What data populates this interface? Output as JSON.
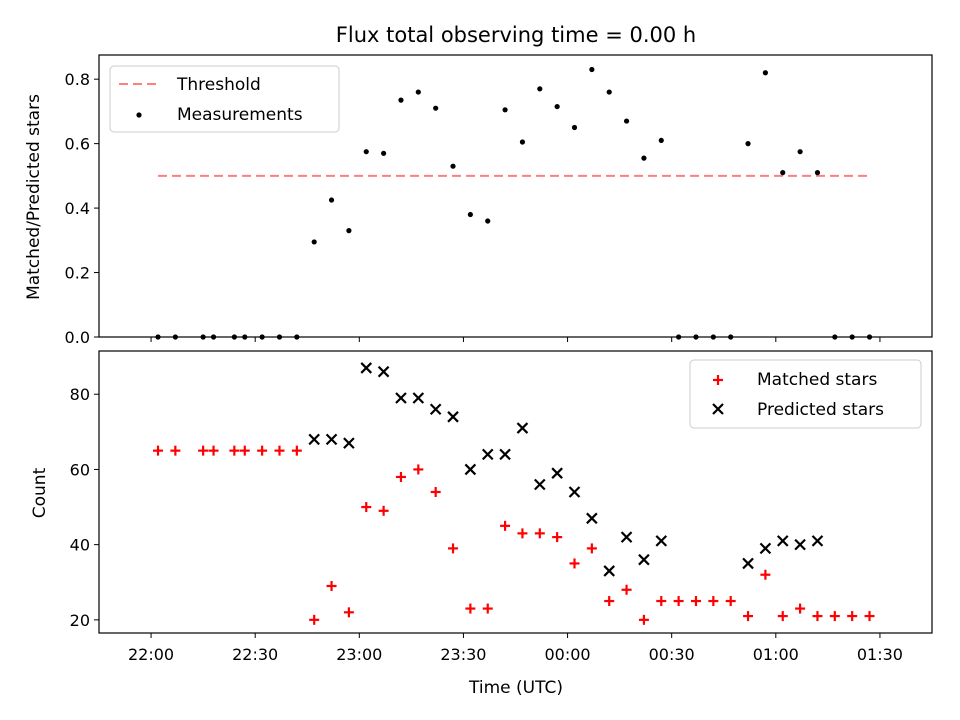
{
  "chart_data": [
    {
      "type": "scatter",
      "title": "Flux total observing time = 0.00 h",
      "xlabel": "",
      "ylabel": "Matched/Predicted stars",
      "xlim_minutes_from_22_00": [
        -15,
        225
      ],
      "ylim": [
        0,
        0.875
      ],
      "yticks": [
        "0.0",
        "0.2",
        "0.4",
        "0.6",
        "0.8"
      ],
      "legend": {
        "placement": "top-left",
        "entries": [
          "Threshold",
          "Measurements"
        ]
      },
      "threshold": {
        "name": "Threshold",
        "value": 0.5,
        "x_range": [
          "22:02",
          "01:27"
        ],
        "color": "#ff7f7f"
      },
      "series": [
        {
          "name": "Measurements",
          "color": "#000000",
          "x": [
            "22:02",
            "22:07",
            "22:15",
            "22:18",
            "22:24",
            "22:27",
            "22:32",
            "22:37",
            "22:42",
            "22:47",
            "22:52",
            "22:57",
            "23:02",
            "23:07",
            "23:12",
            "23:17",
            "23:22",
            "23:27",
            "23:32",
            "23:37",
            "23:42",
            "23:47",
            "23:52",
            "23:57",
            "00:02",
            "00:07",
            "00:12",
            "00:17",
            "00:22",
            "00:27",
            "00:32",
            "00:37",
            "00:42",
            "00:47",
            "00:52",
            "00:57",
            "01:02",
            "01:07",
            "01:12",
            "01:17",
            "01:22",
            "01:27"
          ],
          "y": [
            0,
            0,
            0,
            0,
            0,
            0,
            0,
            0,
            0,
            0.295,
            0.425,
            0.33,
            0.575,
            0.57,
            0.735,
            0.76,
            0.71,
            0.53,
            0.38,
            0.36,
            0.705,
            0.605,
            0.77,
            0.715,
            0.65,
            0.83,
            0.76,
            0.67,
            0.555,
            0.61,
            0,
            0,
            0,
            0,
            0.6,
            0.82,
            0.51,
            0.575,
            0.51,
            0,
            0,
            0
          ]
        }
      ]
    },
    {
      "type": "scatter",
      "title": "",
      "xlabel": "Time (UTC)",
      "ylabel": "Count",
      "xlim_minutes_from_22_00": [
        -15,
        225
      ],
      "ylim": [
        16.5,
        91.5
      ],
      "yticks": [
        "20",
        "40",
        "60",
        "80"
      ],
      "xticks": [
        "22:00",
        "22:30",
        "23:00",
        "23:30",
        "00:00",
        "00:30",
        "01:00",
        "01:30"
      ],
      "legend": {
        "placement": "top-right",
        "entries": [
          "Matched stars",
          "Predicted stars"
        ]
      },
      "series": [
        {
          "name": "Matched stars",
          "marker": "plus",
          "color": "#ff0000",
          "x": [
            "22:02",
            "22:07",
            "22:15",
            "22:18",
            "22:24",
            "22:27",
            "22:32",
            "22:37",
            "22:42",
            "22:47",
            "22:52",
            "22:57",
            "23:02",
            "23:07",
            "23:12",
            "23:17",
            "23:22",
            "23:27",
            "23:32",
            "23:37",
            "23:42",
            "23:47",
            "23:52",
            "23:57",
            "00:02",
            "00:07",
            "00:12",
            "00:17",
            "00:22",
            "00:27",
            "00:32",
            "00:37",
            "00:42",
            "00:47",
            "00:52",
            "00:57",
            "01:02",
            "01:07",
            "01:12",
            "01:17",
            "01:22",
            "01:27"
          ],
          "y": [
            65,
            65,
            65,
            65,
            65,
            65,
            65,
            65,
            65,
            20,
            29,
            22,
            50,
            49,
            58,
            60,
            54,
            39,
            23,
            23,
            45,
            43,
            43,
            42,
            35,
            39,
            25,
            28,
            20,
            25,
            25,
            25,
            25,
            25,
            21,
            32,
            21,
            23,
            21,
            21,
            21,
            21
          ]
        },
        {
          "name": "Predicted stars",
          "marker": "x",
          "color": "#000000",
          "x": [
            "22:47",
            "22:52",
            "22:57",
            "23:02",
            "23:07",
            "23:12",
            "23:17",
            "23:22",
            "23:27",
            "23:32",
            "23:37",
            "23:42",
            "23:47",
            "23:52",
            "23:57",
            "00:02",
            "00:07",
            "00:12",
            "00:17",
            "00:22",
            "00:27",
            "00:52",
            "00:57",
            "01:02",
            "01:07",
            "01:12"
          ],
          "y": [
            68,
            68,
            67,
            87,
            86,
            79,
            79,
            76,
            74,
            60,
            64,
            64,
            71,
            56,
            59,
            54,
            47,
            33,
            42,
            36,
            41,
            35,
            39,
            41,
            40,
            41
          ]
        }
      ]
    }
  ]
}
